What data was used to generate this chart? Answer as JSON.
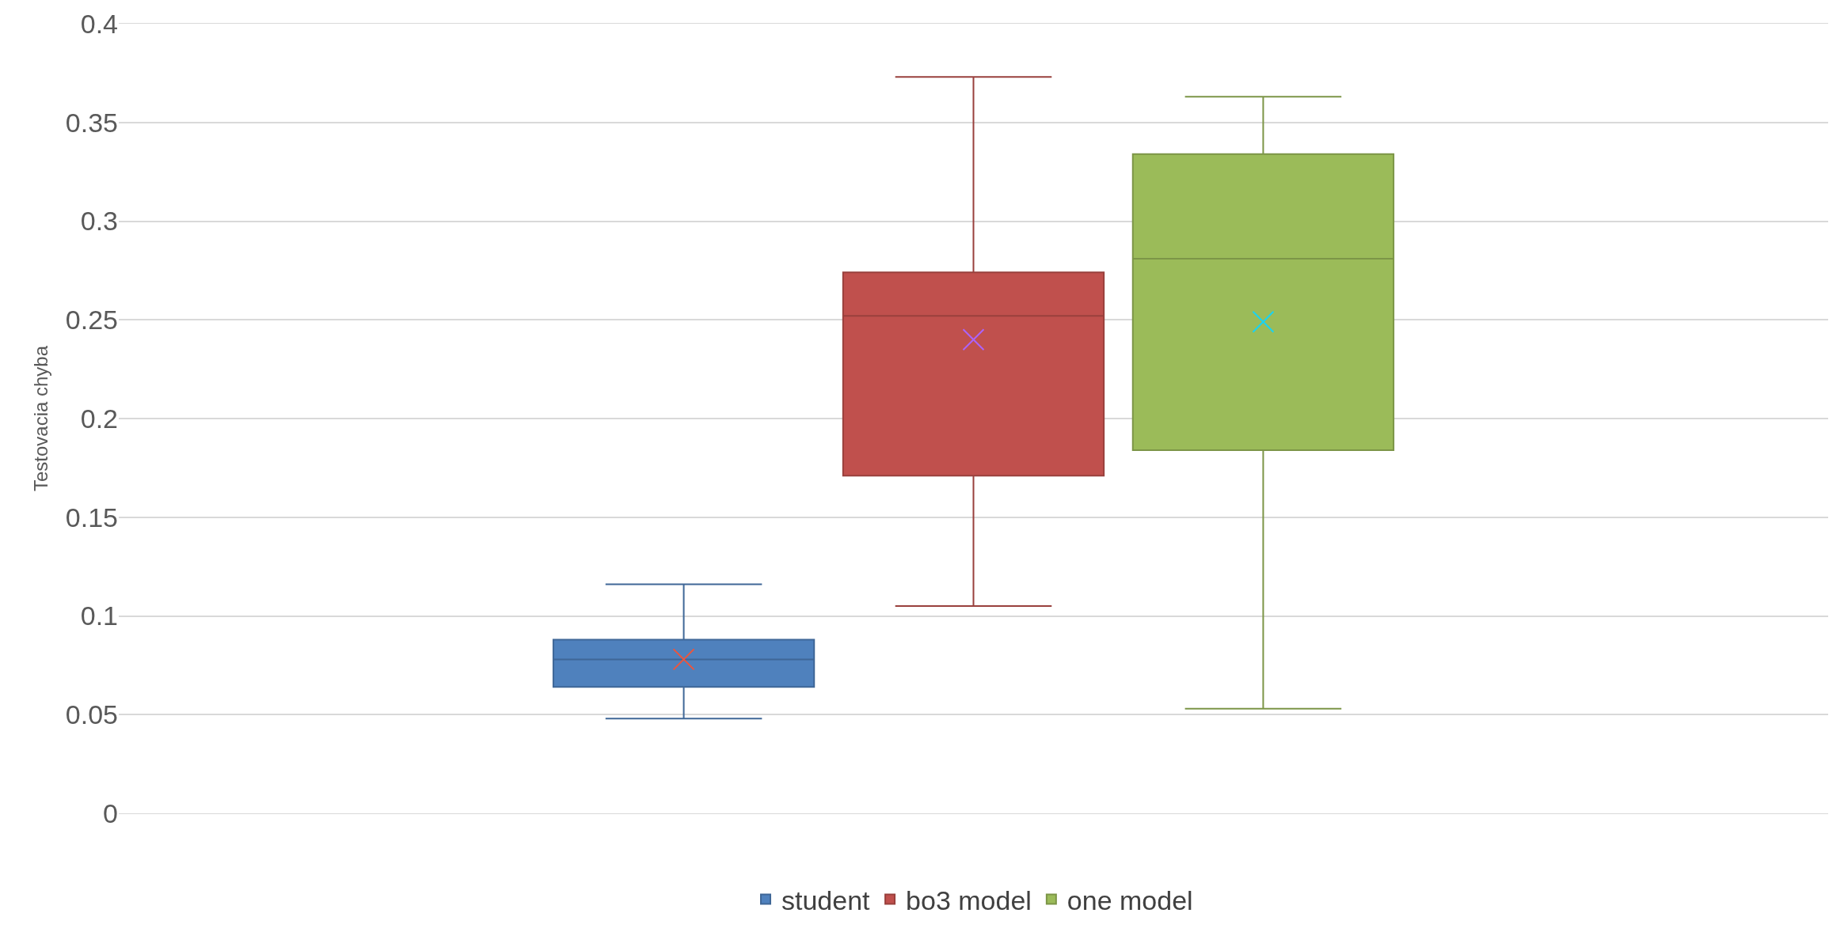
{
  "chart_data": {
    "type": "box",
    "ylabel": "Testovacia chyba",
    "categories": [
      null
    ],
    "ylim": [
      0,
      0.4
    ],
    "yticks": [
      0,
      0.05,
      0.1,
      0.15,
      0.2,
      0.25,
      0.3,
      0.35,
      0.4
    ],
    "grid": "y",
    "legend": "bottom",
    "marker": "cross",
    "series": [
      {
        "name": "student",
        "color": "#4f81bd",
        "boxes": [
          {
            "low": 0.048,
            "q1": 0.064,
            "median": 0.078,
            "q3": 0.088,
            "high": 0.116,
            "mean": 0.078
          }
        ]
      },
      {
        "name": "bo3 model",
        "color": "#c0504d",
        "boxes": [
          {
            "low": 0.105,
            "q1": 0.171,
            "median": 0.252,
            "q3": 0.274,
            "high": 0.373,
            "mean": 0.24
          }
        ]
      },
      {
        "name": "one model",
        "color": "#9bbb59",
        "boxes": [
          {
            "low": 0.053,
            "q1": 0.184,
            "median": 0.281,
            "q3": 0.334,
            "high": 0.363,
            "mean": 0.249
          }
        ]
      }
    ]
  }
}
